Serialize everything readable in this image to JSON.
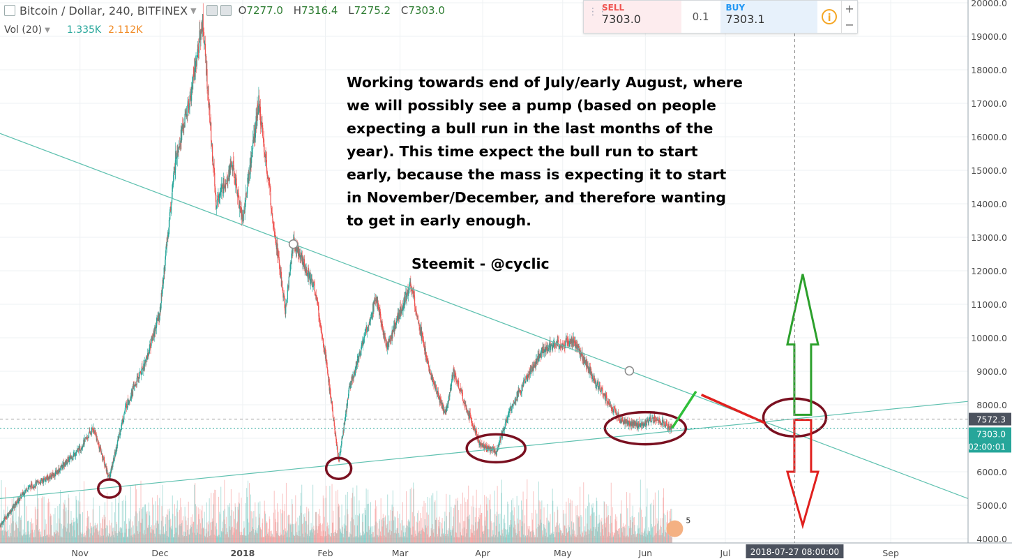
{
  "header": {
    "symbol": "Bitcoin / Dollar, 240, BITFINEX",
    "o_label": "O",
    "o": "7277.0",
    "h_label": "H",
    "h": "7316.4",
    "l_label": "L",
    "l": "7275.2",
    "c_label": "C",
    "c": "7303.0"
  },
  "volume_legend": {
    "label": "Vol (20)",
    "v1": "1.335K",
    "v2": "2.112K"
  },
  "trade_panel": {
    "sell_label": "SELL",
    "sell_price": "7303.0",
    "qty": "0.1",
    "buy_label": "BUY",
    "buy_price": "7303.1",
    "info_icon": "info-icon"
  },
  "annotation": {
    "text": "Working towards end of July/early August, where we will possibly see a pump (based on people expecting a bull run in the last months of the year). This time expect the bull run to start early, because the mass is expecting it to start in November/December, and therefore wanting to get in early enough.",
    "signature": "Steemit - @cyclic"
  },
  "price_tags": {
    "crosshair": "7572.3",
    "last": "7303.0",
    "countdown": "02:00:01"
  },
  "crosshair_date": "2018-07-27 08:00:00",
  "events_badge": "5",
  "colors": {
    "up": "#26a69a",
    "down": "#ef5350",
    "trendline": "#5fc1b0",
    "circle": "#7a1020",
    "arrow_up": "#2ca02c",
    "arrow_down": "#e0201e"
  },
  "chart_data": {
    "type": "candlestick",
    "title": "Bitcoin / Dollar, 240, BITFINEX",
    "ylim": [
      4000,
      20000
    ],
    "y_ticks": [
      4000,
      5000,
      6000,
      7000,
      8000,
      9000,
      10000,
      11000,
      12000,
      13000,
      14000,
      15000,
      16000,
      17000,
      18000,
      19000,
      20000
    ],
    "y_tick_labels": [
      "4000.0",
      "5000.0",
      "6000.0",
      "7000.0",
      "8000.0",
      "9000.0",
      "10000.0",
      "11000.0",
      "12000.0",
      "13000.0",
      "14000.0",
      "15000.0",
      "16000.0",
      "17000.0",
      "18000.0",
      "19000.0",
      "20000.0"
    ],
    "x_labels": [
      "Nov",
      "Dec",
      "2018",
      "Feb",
      "Mar",
      "Apr",
      "May",
      "Jun",
      "Jul",
      "Sep"
    ],
    "x_label_dates": [
      "2017-11-01",
      "2017-12-01",
      "2018-01-01",
      "2018-02-01",
      "2018-03-01",
      "2018-04-01",
      "2018-05-01",
      "2018-06-01",
      "2018-07-01",
      "2018-09-01"
    ],
    "bold_x_label": "2018",
    "x_range": [
      "2017-10-02",
      "2018-09-30"
    ],
    "price_path": [
      [
        "2017-10-02",
        4400
      ],
      [
        "2017-10-12",
        5500
      ],
      [
        "2017-10-22",
        5900
      ],
      [
        "2017-11-01",
        6700
      ],
      [
        "2017-11-06",
        7300
      ],
      [
        "2017-11-12",
        5800
      ],
      [
        "2017-11-18",
        7900
      ],
      [
        "2017-11-26",
        9400
      ],
      [
        "2017-12-01",
        10800
      ],
      [
        "2017-12-07",
        15500
      ],
      [
        "2017-12-12",
        17000
      ],
      [
        "2017-12-17",
        19500
      ],
      [
        "2017-12-22",
        14000
      ],
      [
        "2017-12-28",
        15200
      ],
      [
        "2018-01-01",
        13500
      ],
      [
        "2018-01-07",
        17000
      ],
      [
        "2018-01-12",
        13800
      ],
      [
        "2018-01-17",
        10800
      ],
      [
        "2018-01-20",
        12900
      ],
      [
        "2018-01-28",
        11500
      ],
      [
        "2018-02-01",
        9500
      ],
      [
        "2018-02-06",
        6300
      ],
      [
        "2018-02-10",
        8500
      ],
      [
        "2018-02-20",
        11200
      ],
      [
        "2018-02-24",
        9700
      ],
      [
        "2018-03-05",
        11600
      ],
      [
        "2018-03-12",
        9000
      ],
      [
        "2018-03-18",
        7700
      ],
      [
        "2018-03-21",
        9000
      ],
      [
        "2018-03-31",
        6800
      ],
      [
        "2018-04-06",
        6600
      ],
      [
        "2018-04-12",
        8000
      ],
      [
        "2018-04-24",
        9700
      ],
      [
        "2018-05-05",
        9900
      ],
      [
        "2018-05-14",
        8600
      ],
      [
        "2018-05-23",
        7500
      ],
      [
        "2018-05-29",
        7400
      ],
      [
        "2018-06-05",
        7600
      ],
      [
        "2018-06-11",
        7300
      ]
    ],
    "trendlines": [
      {
        "name": "descending",
        "from": [
          "2017-10-02",
          16100
        ],
        "to": [
          "2018-09-30",
          5200
        ]
      },
      {
        "name": "ascending",
        "from": [
          "2017-10-02",
          5200
        ],
        "to": [
          "2018-09-30",
          8100
        ]
      }
    ],
    "volume_label": "Vol (20)"
  }
}
